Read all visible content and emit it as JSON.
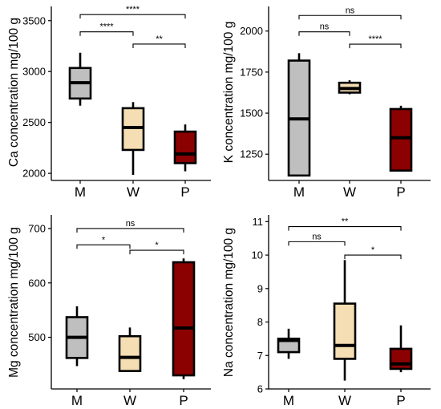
{
  "chart_data": [
    {
      "id": "ca",
      "type": "box",
      "ylabel": "Ca concentration mg/100 g",
      "ylim": [
        1930,
        3640
      ],
      "yticks": [
        2000,
        2500,
        3000,
        3500
      ],
      "categories": [
        "M",
        "W",
        "P"
      ],
      "colors": [
        "#bfbfbf",
        "#f5deb3",
        "#8b0000"
      ],
      "boxes": [
        {
          "min": 2665,
          "q1": 2735,
          "median": 2890,
          "q3": 3035,
          "max": 3185
        },
        {
          "min": 1985,
          "q1": 2230,
          "median": 2450,
          "q3": 2640,
          "max": 2700
        },
        {
          "min": 2020,
          "q1": 2100,
          "median": 2190,
          "q3": 2410,
          "max": 2480
        }
      ],
      "comparisons": [
        {
          "from": 1,
          "to": 2,
          "level": 3390,
          "label": "****"
        },
        {
          "from": 2,
          "to": 3,
          "level": 3270,
          "label": "**"
        },
        {
          "from": 1,
          "to": 3,
          "level": 3560,
          "label": "****"
        }
      ]
    },
    {
      "id": "k",
      "type": "box",
      "ylabel": "K concentration mg/100 g",
      "ylim": [
        1090,
        2150
      ],
      "yticks": [
        1250,
        1500,
        1750,
        2000
      ],
      "categories": [
        "M",
        "W",
        "P"
      ],
      "colors": [
        "#bfbfbf",
        "#f5deb3",
        "#8b0000"
      ],
      "boxes": [
        {
          "min": 1120,
          "q1": 1120,
          "median": 1465,
          "q3": 1820,
          "max": 1865
        },
        {
          "min": 1615,
          "q1": 1625,
          "median": 1650,
          "q3": 1685,
          "max": 1700
        },
        {
          "min": 1145,
          "q1": 1150,
          "median": 1350,
          "q3": 1525,
          "max": 1545
        }
      ],
      "comparisons": [
        {
          "from": 1,
          "to": 2,
          "level": 1995,
          "label": "ns"
        },
        {
          "from": 2,
          "to": 3,
          "level": 1920,
          "label": "****"
        },
        {
          "from": 1,
          "to": 3,
          "level": 2095,
          "label": "ns"
        }
      ]
    },
    {
      "id": "mg",
      "type": "box",
      "ylabel": "Mg concentration mg/100 g",
      "ylim": [
        405,
        725
      ],
      "yticks": [
        500,
        600,
        700
      ],
      "categories": [
        "M",
        "W",
        "P"
      ],
      "colors": [
        "#bfbfbf",
        "#f5deb3",
        "#8b0000"
      ],
      "boxes": [
        {
          "min": 447,
          "q1": 462,
          "median": 500,
          "q3": 537,
          "max": 557
        },
        {
          "min": 437,
          "q1": 438,
          "median": 463,
          "q3": 502,
          "max": 518
        },
        {
          "min": 423,
          "q1": 430,
          "median": 517,
          "q3": 638,
          "max": 645
        }
      ],
      "comparisons": [
        {
          "from": 1,
          "to": 2,
          "level": 670,
          "label": "*"
        },
        {
          "from": 2,
          "to": 3,
          "level": 660,
          "label": "*"
        },
        {
          "from": 1,
          "to": 3,
          "level": 700,
          "label": "ns"
        }
      ]
    },
    {
      "id": "na",
      "type": "box",
      "ylabel": "Na concentration mg/100 g",
      "ylim": [
        6.0,
        11.2
      ],
      "yticks": [
        6,
        7,
        8,
        9,
        10,
        11
      ],
      "categories": [
        "M",
        "W",
        "P"
      ],
      "colors": [
        "#bfbfbf",
        "#f5deb3",
        "#8b0000"
      ],
      "boxes": [
        {
          "min": 6.9,
          "q1": 7.1,
          "median": 7.45,
          "q3": 7.5,
          "max": 7.8
        },
        {
          "min": 6.25,
          "q1": 6.9,
          "median": 7.3,
          "q3": 8.55,
          "max": 9.85
        },
        {
          "min": 6.5,
          "q1": 6.6,
          "median": 6.75,
          "q3": 7.2,
          "max": 7.9
        }
      ],
      "comparisons": [
        {
          "from": 1,
          "to": 2,
          "level": 10.4,
          "label": "ns"
        },
        {
          "from": 2,
          "to": 3,
          "level": 10.0,
          "label": "*"
        },
        {
          "from": 1,
          "to": 3,
          "level": 10.85,
          "label": "**"
        }
      ]
    }
  ]
}
